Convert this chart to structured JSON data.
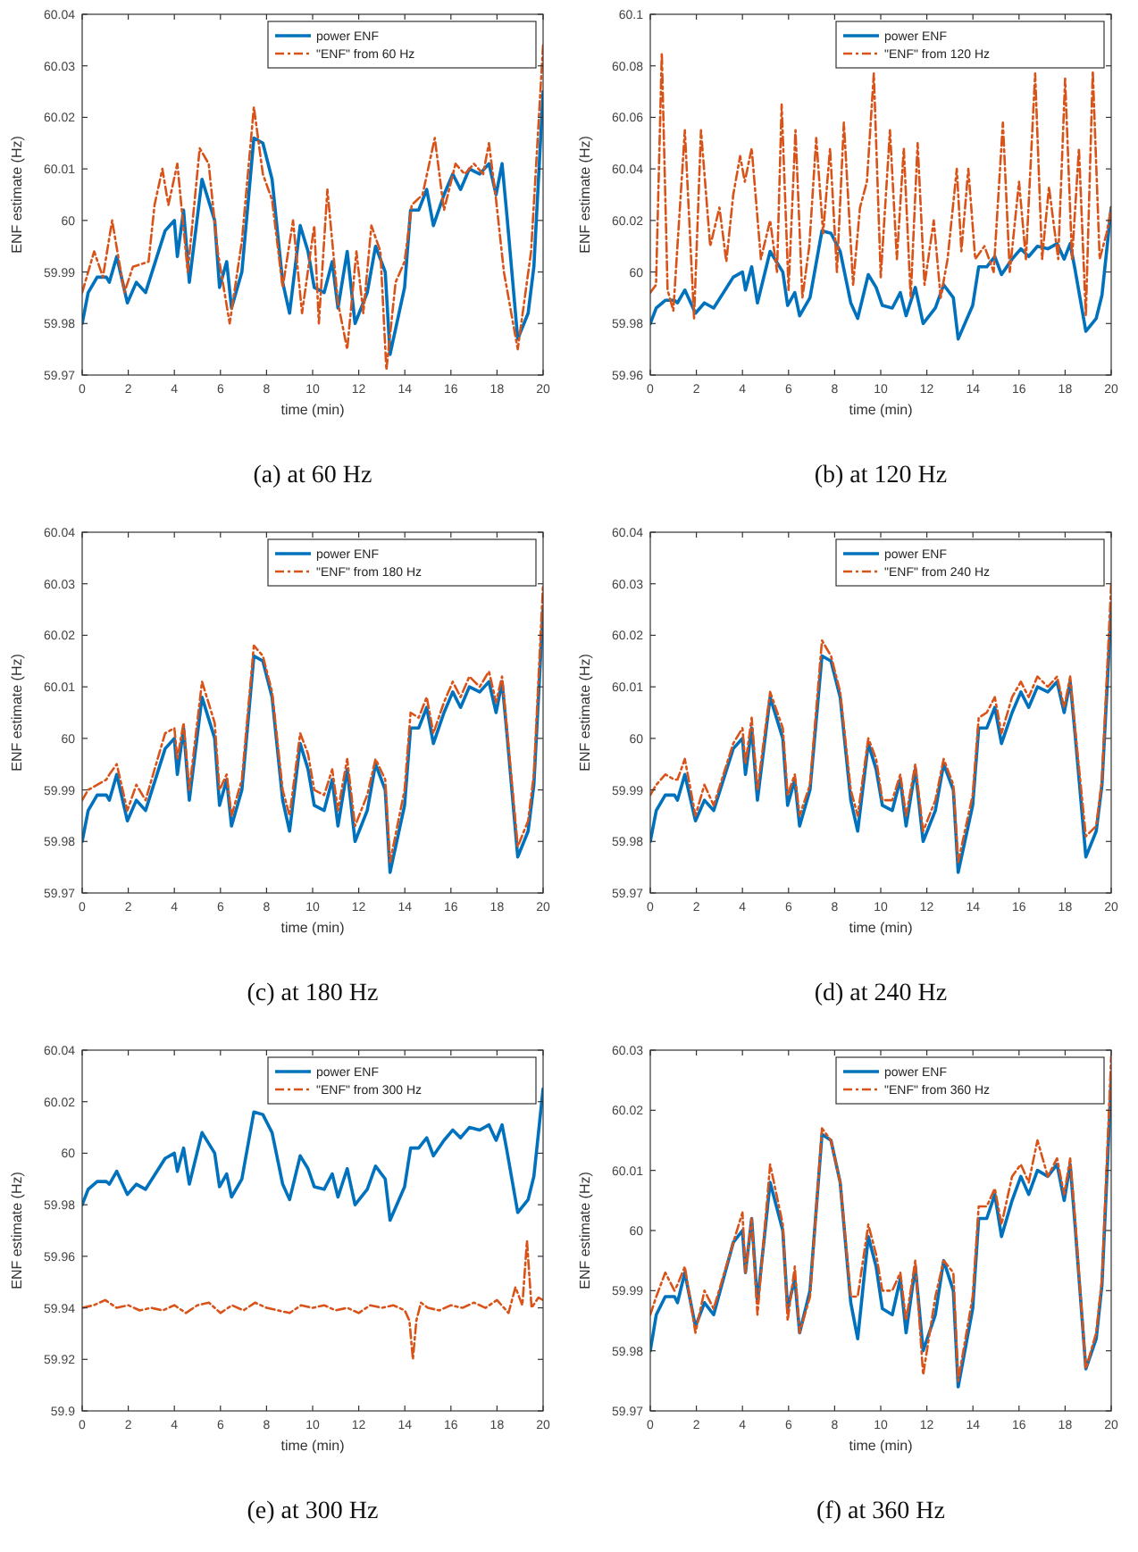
{
  "chart_data": [
    {
      "type": "line",
      "title": "(a) at 60 Hz",
      "xlabel": "time (min)",
      "ylabel": "ENF estimate (Hz)",
      "xlim": [
        0,
        20
      ],
      "xticks": [
        0,
        2,
        4,
        6,
        8,
        10,
        12,
        14,
        16,
        18,
        20
      ],
      "ylim": [
        59.97,
        60.04
      ],
      "yticks": [
        59.97,
        59.98,
        59.99,
        60,
        60.01,
        60.02,
        60.03,
        60.04
      ],
      "legend": "top right",
      "series": [
        {
          "name": "power ENF",
          "color": "#0072bd",
          "line_style": "solid",
          "x": [
            0,
            0.26,
            0.65,
            1.05,
            1.18,
            1.5,
            1.96,
            2.35,
            2.75,
            3.6,
            4.0,
            4.13,
            4.4,
            4.65,
            5.2,
            5.75,
            5.96,
            6.27,
            6.48,
            6.93,
            7.45,
            7.84,
            8.24,
            8.7,
            9.0,
            9.46,
            9.8,
            10.07,
            10.5,
            10.85,
            11.1,
            11.5,
            11.84,
            12.37,
            12.73,
            13.15,
            13.36,
            13.99,
            14.25,
            14.6,
            14.95,
            15.24,
            15.7,
            16.08,
            16.42,
            16.8,
            17.25,
            17.65,
            17.96,
            18.22,
            18.43,
            18.9,
            19.35,
            19.6,
            20
          ],
          "values": [
            59.98,
            59.986,
            59.989,
            59.989,
            59.988,
            59.993,
            59.984,
            59.988,
            59.986,
            59.998,
            60.0,
            59.993,
            60.002,
            59.988,
            60.008,
            60.0,
            59.987,
            59.992,
            59.983,
            59.99,
            60.016,
            60.015,
            60.008,
            59.988,
            59.982,
            59.999,
            59.994,
            59.987,
            59.986,
            59.992,
            59.983,
            59.994,
            59.98,
            59.986,
            59.995,
            59.99,
            59.974,
            59.987,
            60.002,
            60.002,
            60.006,
            59.999,
            60.005,
            60.009,
            60.006,
            60.01,
            60.009,
            60.011,
            60.005,
            60.011,
            60.001,
            59.977,
            59.982,
            59.991,
            60.025
          ]
        },
        {
          "name": "\"ENF\" from 60 Hz",
          "color": "#d95319",
          "line_style": "dashed",
          "x": [
            0,
            0.52,
            0.9,
            1.3,
            1.83,
            2.2,
            2.88,
            3.14,
            3.48,
            3.74,
            4.13,
            4.58,
            5.1,
            5.49,
            5.88,
            6.4,
            6.93,
            7.45,
            7.84,
            8.24,
            8.7,
            9.15,
            9.54,
            10.07,
            10.27,
            10.64,
            11.1,
            11.5,
            11.9,
            12.2,
            12.55,
            12.94,
            13.2,
            13.6,
            13.99,
            14.3,
            14.77,
            15.3,
            15.7,
            16.2,
            16.6,
            17.0,
            17.4,
            17.65,
            17.96,
            18.3,
            18.9,
            19.48,
            20
          ],
          "values": [
            59.986,
            59.994,
            59.989,
            60.0,
            59.986,
            59.991,
            59.992,
            60.003,
            60.01,
            60.003,
            60.011,
            59.99,
            60.014,
            60.011,
            59.994,
            59.98,
            59.996,
            60.022,
            60.009,
            60.004,
            59.987,
            60.0,
            59.982,
            59.999,
            59.98,
            60.006,
            59.984,
            59.975,
            59.994,
            59.982,
            59.999,
            59.994,
            59.971,
            59.988,
            59.992,
            60.003,
            60.005,
            60.016,
            60.002,
            60.011,
            60.009,
            60.011,
            60.009,
            60.015,
            60.004,
            59.99,
            59.975,
            59.994,
            60.034
          ]
        }
      ]
    },
    {
      "type": "line",
      "title": "(b) at 120 Hz",
      "xlabel": "time (min)",
      "ylabel": "ENF estimate (Hz)",
      "xlim": [
        0,
        20
      ],
      "xticks": [
        0,
        2,
        4,
        6,
        8,
        10,
        12,
        14,
        16,
        18,
        20
      ],
      "ylim": [
        59.96,
        60.1
      ],
      "yticks": [
        59.96,
        59.98,
        60,
        60.02,
        60.04,
        60.06,
        60.08,
        60.1
      ],
      "legend": "top right",
      "series": [
        {
          "name": "power ENF",
          "color": "#0072bd",
          "line_style": "solid",
          "x": [
            0,
            0.26,
            0.65,
            1.05,
            1.18,
            1.5,
            1.96,
            2.35,
            2.75,
            3.6,
            4.0,
            4.13,
            4.4,
            4.65,
            5.2,
            5.75,
            5.96,
            6.27,
            6.48,
            6.93,
            7.45,
            7.84,
            8.24,
            8.7,
            9.0,
            9.46,
            9.8,
            10.07,
            10.5,
            10.85,
            11.1,
            11.5,
            11.84,
            12.37,
            12.73,
            13.15,
            13.36,
            13.99,
            14.25,
            14.6,
            14.95,
            15.24,
            15.7,
            16.08,
            16.42,
            16.8,
            17.25,
            17.65,
            17.96,
            18.22,
            18.43,
            18.9,
            19.35,
            19.6,
            20
          ],
          "values": [
            59.98,
            59.986,
            59.989,
            59.989,
            59.988,
            59.993,
            59.984,
            59.988,
            59.986,
            59.998,
            60.0,
            59.993,
            60.002,
            59.988,
            60.008,
            60.0,
            59.987,
            59.992,
            59.983,
            59.99,
            60.016,
            60.015,
            60.008,
            59.988,
            59.982,
            59.999,
            59.994,
            59.987,
            59.986,
            59.992,
            59.983,
            59.994,
            59.98,
            59.986,
            59.995,
            59.99,
            59.974,
            59.987,
            60.002,
            60.002,
            60.006,
            59.999,
            60.005,
            60.009,
            60.006,
            60.01,
            60.009,
            60.011,
            60.005,
            60.011,
            60.001,
            59.977,
            59.982,
            59.991,
            60.025
          ]
        },
        {
          "name": "\"ENF\" from 120 Hz",
          "color": "#d95319",
          "line_style": "dashed",
          "x": [
            0,
            0.25,
            0.5,
            0.75,
            1.0,
            1.5,
            1.9,
            2.2,
            2.6,
            3.0,
            3.3,
            3.6,
            3.9,
            4.1,
            4.4,
            4.8,
            5.2,
            5.5,
            5.7,
            6.0,
            6.3,
            6.6,
            6.9,
            7.2,
            7.5,
            7.8,
            8.1,
            8.4,
            8.8,
            9.1,
            9.4,
            9.7,
            10.0,
            10.4,
            10.7,
            11.0,
            11.3,
            11.6,
            11.9,
            12.3,
            12.6,
            12.9,
            13.3,
            13.5,
            13.8,
            14.1,
            14.5,
            14.9,
            15.3,
            15.6,
            16.0,
            16.3,
            16.7,
            17.0,
            17.3,
            17.7,
            18.0,
            18.3,
            18.6,
            18.9,
            19.2,
            19.5,
            19.8,
            20
          ],
          "values": [
            59.992,
            59.995,
            60.085,
            59.993,
            59.985,
            60.055,
            59.982,
            60.055,
            60.01,
            60.025,
            60.004,
            60.03,
            60.045,
            60.035,
            60.048,
            60.005,
            60.02,
            60.0,
            60.065,
            59.993,
            60.055,
            59.99,
            60.01,
            60.052,
            60.015,
            60.048,
            60.0,
            60.058,
            59.995,
            60.025,
            60.035,
            60.077,
            59.998,
            60.055,
            60.005,
            60.048,
            59.99,
            60.05,
            59.995,
            60.02,
            59.99,
            60.005,
            60.04,
            60.008,
            60.04,
            60.005,
            60.01,
            60.0,
            60.058,
            60.0,
            60.035,
            60.005,
            60.077,
            60.005,
            60.033,
            60.005,
            60.075,
            60.005,
            60.048,
            59.983,
            60.078,
            60.005,
            60.015,
            60.025
          ]
        }
      ]
    },
    {
      "type": "line",
      "title": "(c) at 180 Hz",
      "xlabel": "time (min)",
      "ylabel": "ENF estimate (Hz)",
      "xlim": [
        0,
        20
      ],
      "xticks": [
        0,
        2,
        4,
        6,
        8,
        10,
        12,
        14,
        16,
        18,
        20
      ],
      "ylim": [
        59.97,
        60.04
      ],
      "yticks": [
        59.97,
        59.98,
        59.99,
        60,
        60.01,
        60.02,
        60.03,
        60.04
      ],
      "legend": "top right",
      "series": [
        {
          "name": "power ENF",
          "color": "#0072bd",
          "line_style": "solid",
          "x": [
            0,
            0.26,
            0.65,
            1.05,
            1.18,
            1.5,
            1.96,
            2.35,
            2.75,
            3.6,
            4.0,
            4.13,
            4.4,
            4.65,
            5.2,
            5.75,
            5.96,
            6.27,
            6.48,
            6.93,
            7.45,
            7.84,
            8.24,
            8.7,
            9.0,
            9.46,
            9.8,
            10.07,
            10.5,
            10.85,
            11.1,
            11.5,
            11.84,
            12.37,
            12.73,
            13.15,
            13.36,
            13.99,
            14.25,
            14.6,
            14.95,
            15.24,
            15.7,
            16.08,
            16.42,
            16.8,
            17.25,
            17.65,
            17.96,
            18.22,
            18.43,
            18.9,
            19.35,
            19.6,
            20
          ],
          "values": [
            59.98,
            59.986,
            59.989,
            59.989,
            59.988,
            59.993,
            59.984,
            59.988,
            59.986,
            59.998,
            60.0,
            59.993,
            60.002,
            59.988,
            60.008,
            60.0,
            59.987,
            59.992,
            59.983,
            59.99,
            60.016,
            60.015,
            60.008,
            59.988,
            59.982,
            59.999,
            59.994,
            59.987,
            59.986,
            59.992,
            59.983,
            59.994,
            59.98,
            59.986,
            59.995,
            59.99,
            59.974,
            59.987,
            60.002,
            60.002,
            60.006,
            59.999,
            60.005,
            60.009,
            60.006,
            60.01,
            60.009,
            60.011,
            60.005,
            60.011,
            60.001,
            59.977,
            59.982,
            59.991,
            60.025
          ]
        },
        {
          "name": "\"ENF\" from 180 Hz",
          "color": "#d95319",
          "line_style": "dashed",
          "x": [
            0,
            0.26,
            0.65,
            1.05,
            1.18,
            1.5,
            1.96,
            2.35,
            2.75,
            3.6,
            4.0,
            4.13,
            4.4,
            4.65,
            5.2,
            5.75,
            5.96,
            6.27,
            6.48,
            6.93,
            7.45,
            7.84,
            8.24,
            8.7,
            9.0,
            9.46,
            9.8,
            10.07,
            10.5,
            10.85,
            11.1,
            11.5,
            11.84,
            12.37,
            12.73,
            13.15,
            13.36,
            13.99,
            14.25,
            14.6,
            14.95,
            15.24,
            15.7,
            16.08,
            16.42,
            16.8,
            17.25,
            17.65,
            17.96,
            18.22,
            18.43,
            18.9,
            19.35,
            19.6,
            20
          ],
          "values": [
            59.988,
            59.99,
            59.991,
            59.992,
            59.993,
            59.995,
            59.986,
            59.991,
            59.988,
            60.001,
            60.002,
            59.996,
            60.003,
            59.99,
            60.011,
            60.003,
            59.99,
            59.993,
            59.985,
            59.992,
            60.018,
            60.016,
            60.009,
            59.99,
            59.985,
            60.001,
            59.997,
            59.99,
            59.989,
            59.994,
            59.986,
            59.996,
            59.983,
            59.989,
            59.996,
            59.992,
            59.976,
            59.99,
            60.005,
            60.004,
            60.008,
            60.001,
            60.007,
            60.011,
            60.008,
            60.012,
            60.01,
            60.013,
            60.007,
            60.012,
            60.002,
            59.979,
            59.984,
            59.993,
            60.03
          ]
        }
      ]
    },
    {
      "type": "line",
      "title": "(d) at 240 Hz",
      "xlabel": "time (min)",
      "ylabel": "ENF estimate (Hz)",
      "xlim": [
        0,
        20
      ],
      "xticks": [
        0,
        2,
        4,
        6,
        8,
        10,
        12,
        14,
        16,
        18,
        20
      ],
      "ylim": [
        59.97,
        60.04
      ],
      "yticks": [
        59.97,
        59.98,
        59.99,
        60,
        60.01,
        60.02,
        60.03,
        60.04
      ],
      "legend": "top right",
      "series": [
        {
          "name": "power ENF",
          "color": "#0072bd",
          "line_style": "solid",
          "x": [
            0,
            0.26,
            0.65,
            1.05,
            1.18,
            1.5,
            1.96,
            2.35,
            2.75,
            3.6,
            4.0,
            4.13,
            4.4,
            4.65,
            5.2,
            5.75,
            5.96,
            6.27,
            6.48,
            6.93,
            7.45,
            7.84,
            8.24,
            8.7,
            9.0,
            9.46,
            9.8,
            10.07,
            10.5,
            10.85,
            11.1,
            11.5,
            11.84,
            12.37,
            12.73,
            13.15,
            13.36,
            13.99,
            14.25,
            14.6,
            14.95,
            15.24,
            15.7,
            16.08,
            16.42,
            16.8,
            17.25,
            17.65,
            17.96,
            18.22,
            18.43,
            18.9,
            19.35,
            19.6,
            20
          ],
          "values": [
            59.98,
            59.986,
            59.989,
            59.989,
            59.988,
            59.993,
            59.984,
            59.988,
            59.986,
            59.998,
            60.0,
            59.993,
            60.002,
            59.988,
            60.008,
            60.0,
            59.987,
            59.992,
            59.983,
            59.99,
            60.016,
            60.015,
            60.008,
            59.988,
            59.982,
            59.999,
            59.994,
            59.987,
            59.986,
            59.992,
            59.983,
            59.994,
            59.98,
            59.986,
            59.995,
            59.99,
            59.974,
            59.987,
            60.002,
            60.002,
            60.006,
            59.999,
            60.005,
            60.009,
            60.006,
            60.01,
            60.009,
            60.011,
            60.005,
            60.011,
            60.001,
            59.977,
            59.982,
            59.991,
            60.025
          ]
        },
        {
          "name": "\"ENF\" from 240 Hz",
          "color": "#d95319",
          "line_style": "dashed",
          "x": [
            0,
            0.26,
            0.65,
            1.05,
            1.18,
            1.5,
            1.96,
            2.35,
            2.75,
            3.6,
            4.0,
            4.13,
            4.4,
            4.65,
            5.2,
            5.75,
            5.96,
            6.27,
            6.48,
            6.93,
            7.45,
            7.84,
            8.24,
            8.7,
            9.0,
            9.46,
            9.8,
            10.07,
            10.5,
            10.85,
            11.1,
            11.5,
            11.84,
            12.37,
            12.73,
            13.15,
            13.36,
            13.99,
            14.25,
            14.6,
            14.95,
            15.24,
            15.7,
            16.08,
            16.42,
            16.8,
            17.25,
            17.65,
            17.96,
            18.22,
            18.43,
            18.9,
            19.35,
            19.6,
            20
          ],
          "values": [
            59.989,
            59.991,
            59.993,
            59.992,
            59.992,
            59.996,
            59.985,
            59.991,
            59.987,
            59.999,
            60.002,
            59.995,
            60.004,
            59.99,
            60.009,
            60.002,
            59.989,
            59.993,
            59.985,
            59.991,
            60.019,
            60.016,
            60.009,
            59.99,
            59.985,
            60.0,
            59.996,
            59.988,
            59.988,
            59.993,
            59.985,
            59.995,
            59.982,
            59.988,
            59.996,
            59.991,
            59.976,
            59.989,
            60.004,
            60.005,
            60.008,
            60.001,
            60.008,
            60.011,
            60.008,
            60.012,
            60.01,
            60.012,
            60.006,
            60.012,
            60.002,
            59.981,
            59.983,
            59.992,
            60.03
          ]
        }
      ]
    },
    {
      "type": "line",
      "title": "(e) at 300 Hz",
      "xlabel": "time (min)",
      "ylabel": "ENF estimate (Hz)",
      "xlim": [
        0,
        20
      ],
      "xticks": [
        0,
        2,
        4,
        6,
        8,
        10,
        12,
        14,
        16,
        18,
        20
      ],
      "ylim": [
        59.9,
        60.04
      ],
      "yticks": [
        59.9,
        59.92,
        59.94,
        59.96,
        59.98,
        60,
        60.02,
        60.04
      ],
      "legend": "top right",
      "series": [
        {
          "name": "power ENF",
          "color": "#0072bd",
          "line_style": "solid",
          "x": [
            0,
            0.26,
            0.65,
            1.05,
            1.18,
            1.5,
            1.96,
            2.35,
            2.75,
            3.6,
            4.0,
            4.13,
            4.4,
            4.65,
            5.2,
            5.75,
            5.96,
            6.27,
            6.48,
            6.93,
            7.45,
            7.84,
            8.24,
            8.7,
            9.0,
            9.46,
            9.8,
            10.07,
            10.5,
            10.85,
            11.1,
            11.5,
            11.84,
            12.37,
            12.73,
            13.15,
            13.36,
            13.99,
            14.25,
            14.6,
            14.95,
            15.24,
            15.7,
            16.08,
            16.42,
            16.8,
            17.25,
            17.65,
            17.96,
            18.22,
            18.43,
            18.9,
            19.35,
            19.6,
            20
          ],
          "values": [
            59.98,
            59.986,
            59.989,
            59.989,
            59.988,
            59.993,
            59.984,
            59.988,
            59.986,
            59.998,
            60.0,
            59.993,
            60.002,
            59.988,
            60.008,
            60.0,
            59.987,
            59.992,
            59.983,
            59.99,
            60.016,
            60.015,
            60.008,
            59.988,
            59.982,
            59.999,
            59.994,
            59.987,
            59.986,
            59.992,
            59.983,
            59.994,
            59.98,
            59.986,
            59.995,
            59.99,
            59.974,
            59.987,
            60.002,
            60.002,
            60.006,
            59.999,
            60.005,
            60.009,
            60.006,
            60.01,
            60.009,
            60.011,
            60.005,
            60.011,
            60.001,
            59.977,
            59.982,
            59.991,
            60.025
          ]
        },
        {
          "name": "\"ENF\" from 300 Hz",
          "color": "#d95319",
          "line_style": "dashed",
          "x": [
            0,
            0.5,
            1.0,
            1.5,
            2.0,
            2.5,
            3,
            3.5,
            4,
            4.5,
            5,
            5.5,
            6,
            6.5,
            7,
            7.5,
            8,
            8.5,
            9,
            9.5,
            10,
            10.5,
            11,
            11.5,
            12,
            12.5,
            13,
            13.5,
            14,
            14.2,
            14.35,
            14.5,
            14.7,
            15,
            15.5,
            16,
            16.5,
            17,
            17.5,
            18,
            18.5,
            18.8,
            19.1,
            19.3,
            19.5,
            19.8,
            20
          ],
          "values": [
            59.94,
            59.941,
            59.943,
            59.94,
            59.941,
            59.939,
            59.94,
            59.939,
            59.941,
            59.938,
            59.941,
            59.942,
            59.938,
            59.941,
            59.939,
            59.942,
            59.94,
            59.939,
            59.938,
            59.941,
            59.94,
            59.941,
            59.939,
            59.94,
            59.938,
            59.941,
            59.94,
            59.941,
            59.939,
            59.935,
            59.92,
            59.935,
            59.942,
            59.94,
            59.939,
            59.941,
            59.94,
            59.942,
            59.94,
            59.943,
            59.938,
            59.948,
            59.941,
            59.966,
            59.94,
            59.944,
            59.943
          ]
        }
      ]
    },
    {
      "type": "line",
      "title": "(f) at 360 Hz",
      "xlabel": "time (min)",
      "ylabel": "ENF estimate (Hz)",
      "xlim": [
        0,
        20
      ],
      "xticks": [
        0,
        2,
        4,
        6,
        8,
        10,
        12,
        14,
        16,
        18,
        20
      ],
      "ylim": [
        59.97,
        60.03
      ],
      "yticks": [
        59.97,
        59.98,
        59.99,
        60,
        60.01,
        60.02,
        60.03
      ],
      "legend": "top right",
      "series": [
        {
          "name": "power ENF",
          "color": "#0072bd",
          "line_style": "solid",
          "x": [
            0,
            0.26,
            0.65,
            1.05,
            1.18,
            1.5,
            1.96,
            2.35,
            2.75,
            3.6,
            4.0,
            4.13,
            4.4,
            4.65,
            5.2,
            5.75,
            5.96,
            6.27,
            6.48,
            6.93,
            7.45,
            7.84,
            8.24,
            8.7,
            9.0,
            9.46,
            9.8,
            10.07,
            10.5,
            10.85,
            11.1,
            11.5,
            11.84,
            12.37,
            12.73,
            13.15,
            13.36,
            13.99,
            14.25,
            14.6,
            14.95,
            15.24,
            15.7,
            16.08,
            16.42,
            16.8,
            17.25,
            17.65,
            17.96,
            18.22,
            18.43,
            18.9,
            19.35,
            19.6,
            20
          ],
          "values": [
            59.98,
            59.986,
            59.989,
            59.989,
            59.988,
            59.993,
            59.984,
            59.988,
            59.986,
            59.998,
            60.0,
            59.993,
            60.002,
            59.988,
            60.008,
            60.0,
            59.987,
            59.992,
            59.983,
            59.99,
            60.016,
            60.015,
            60.008,
            59.988,
            59.982,
            59.999,
            59.994,
            59.987,
            59.986,
            59.992,
            59.983,
            59.994,
            59.98,
            59.986,
            59.995,
            59.99,
            59.974,
            59.987,
            60.002,
            60.002,
            60.006,
            59.999,
            60.005,
            60.009,
            60.006,
            60.01,
            60.009,
            60.011,
            60.005,
            60.011,
            60.001,
            59.977,
            59.982,
            59.991,
            60.025
          ]
        },
        {
          "name": "\"ENF\" from 360 Hz",
          "color": "#d95319",
          "line_style": "dashed",
          "x": [
            0,
            0.26,
            0.65,
            1.05,
            1.18,
            1.5,
            1.96,
            2.35,
            2.75,
            3.6,
            4.0,
            4.13,
            4.4,
            4.65,
            5.2,
            5.75,
            5.96,
            6.27,
            6.48,
            6.93,
            7.45,
            7.84,
            8.24,
            8.7,
            9.0,
            9.46,
            9.8,
            10.07,
            10.5,
            10.85,
            11.1,
            11.5,
            11.84,
            12.37,
            12.73,
            13.15,
            13.36,
            13.99,
            14.25,
            14.6,
            14.95,
            15.24,
            15.7,
            16.08,
            16.42,
            16.8,
            17.25,
            17.65,
            17.96,
            18.22,
            18.43,
            18.9,
            19.35,
            19.6,
            20
          ],
          "values": [
            59.986,
            59.989,
            59.993,
            59.99,
            59.991,
            59.994,
            59.983,
            59.99,
            59.987,
            59.998,
            60.003,
            59.993,
            60.002,
            59.986,
            60.011,
            60.001,
            59.985,
            59.994,
            59.983,
            59.989,
            60.017,
            60.015,
            60.008,
            59.989,
            59.989,
            60.001,
            59.996,
            59.99,
            59.99,
            59.993,
            59.985,
            59.995,
            59.976,
            59.989,
            59.995,
            59.993,
            59.975,
            59.989,
            60.004,
            60.004,
            60.007,
            60.001,
            60.009,
            60.011,
            60.008,
            60.015,
            60.009,
            60.012,
            60.006,
            60.012,
            60.002,
            59.977,
            59.983,
            59.992,
            60.029
          ]
        }
      ]
    }
  ]
}
